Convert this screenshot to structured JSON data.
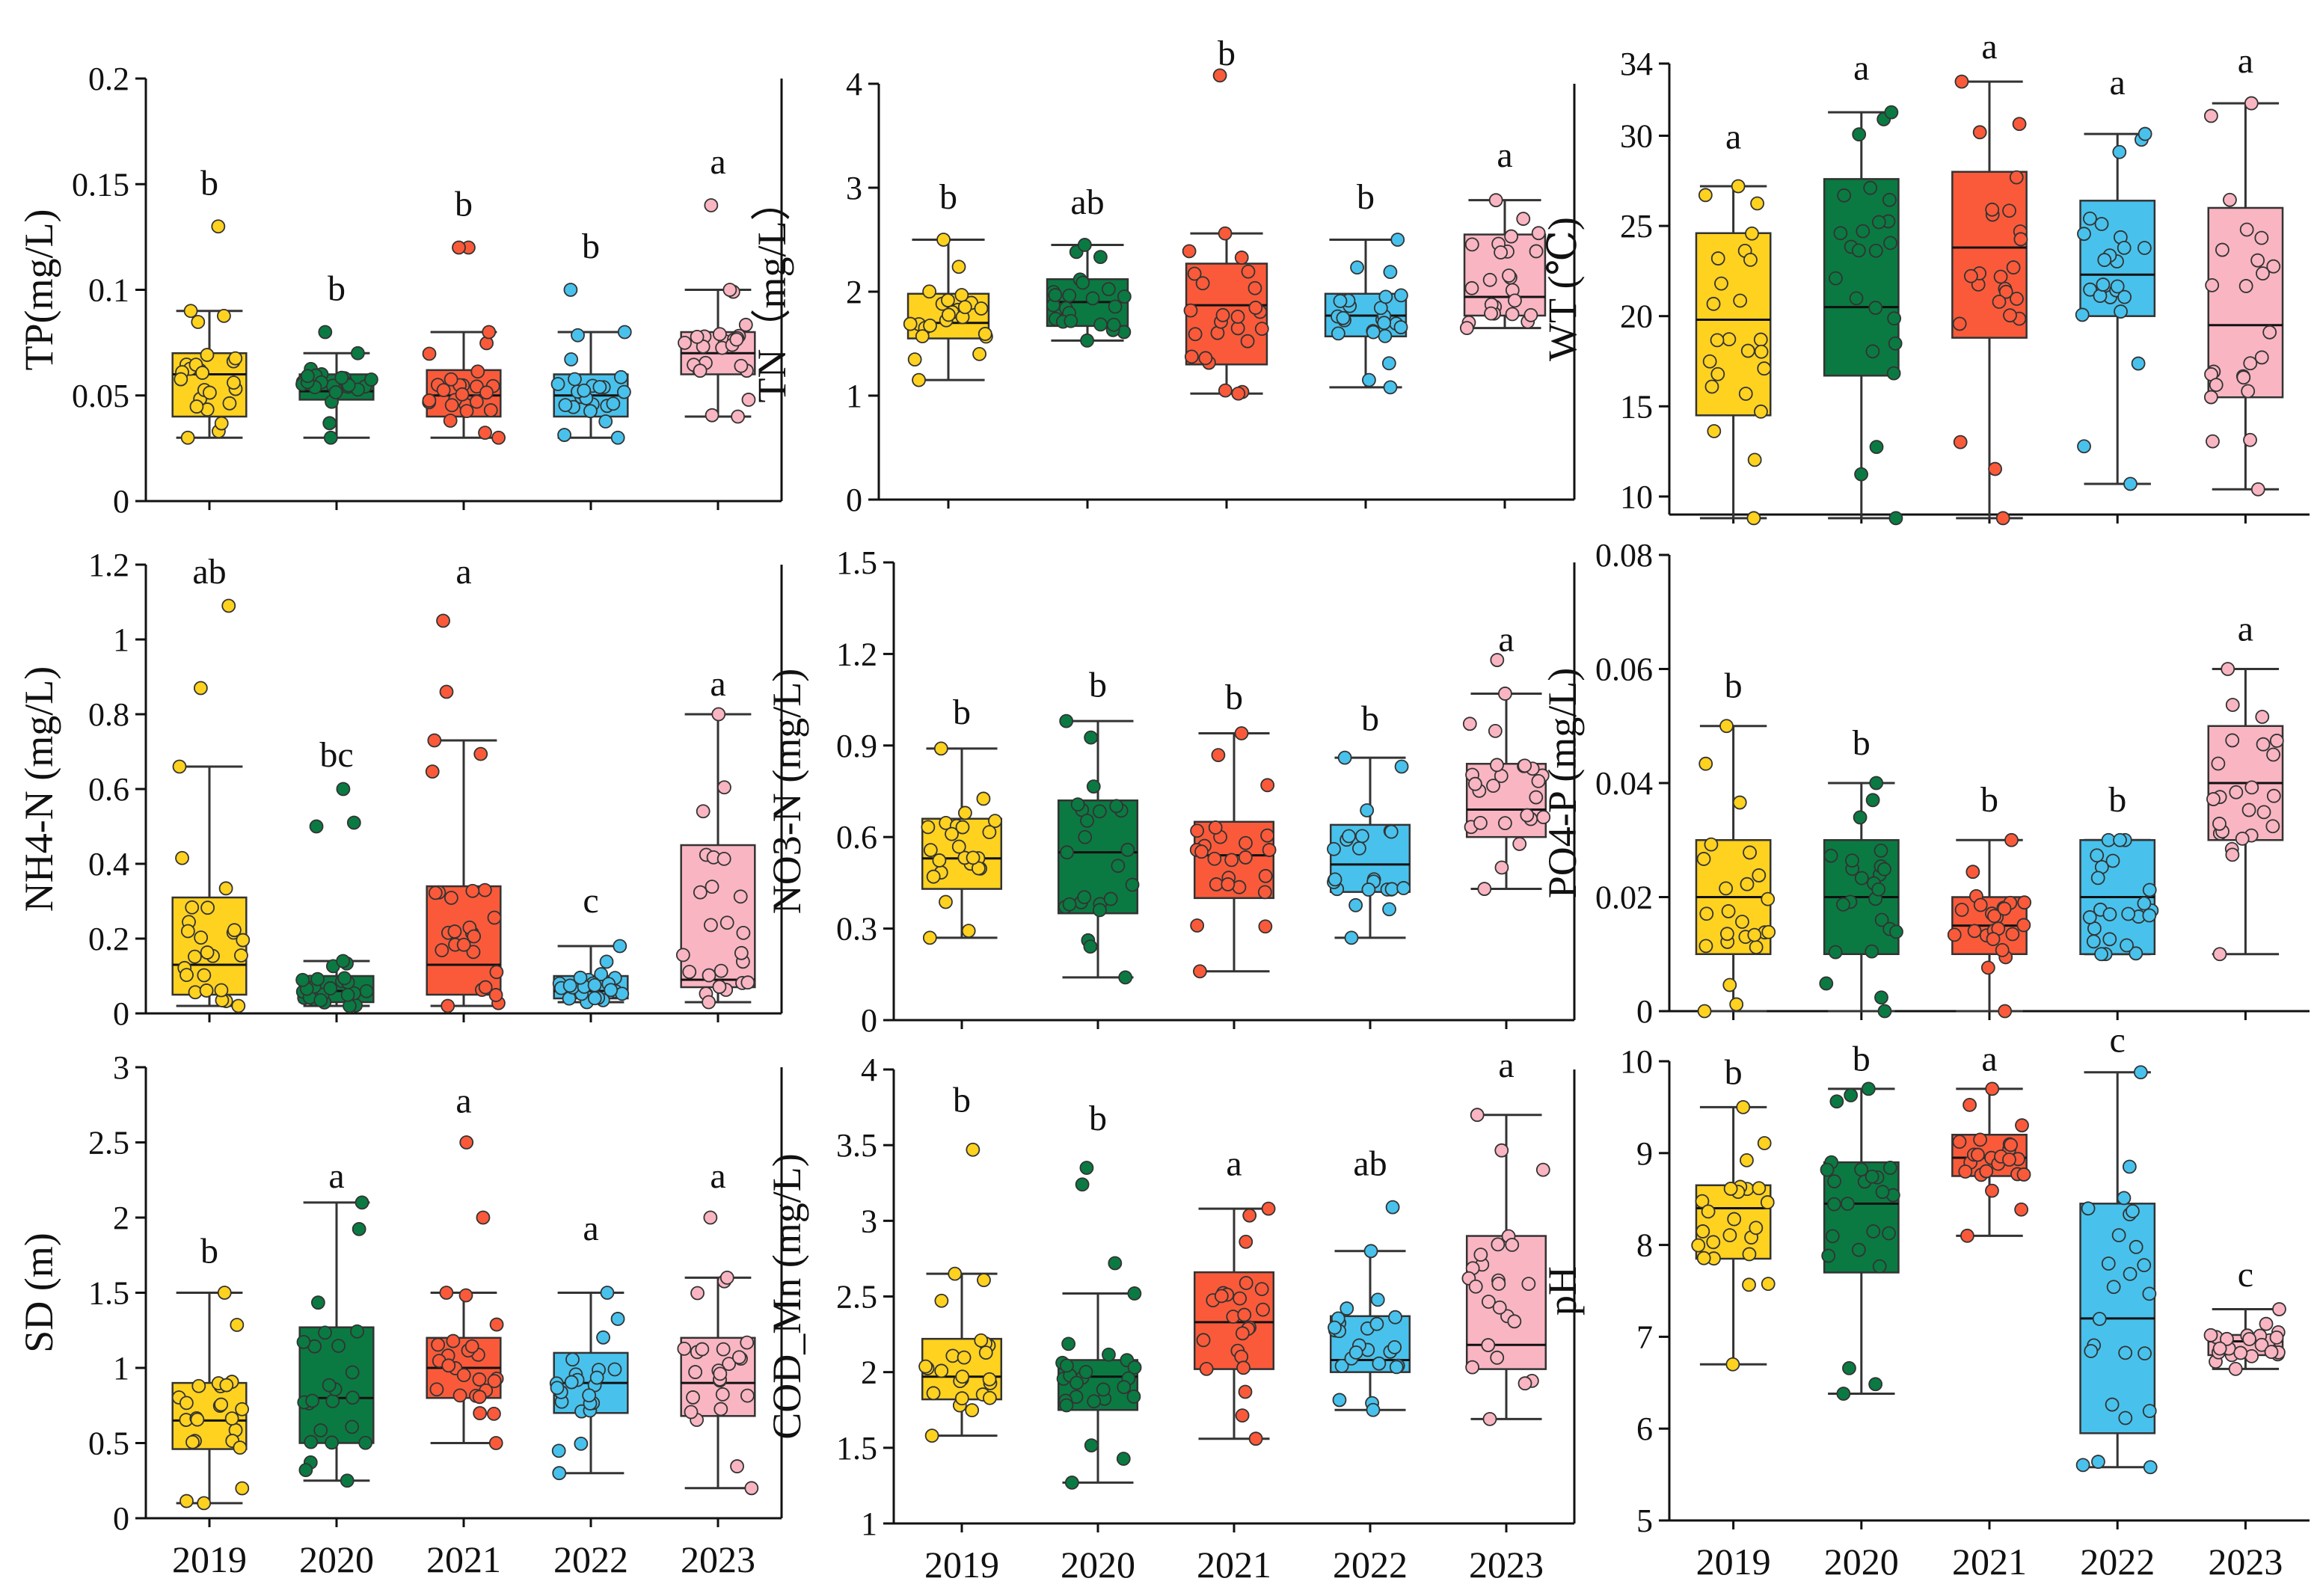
{
  "colors": {
    "2019": "#FFD21F",
    "2020": "#0A7A42",
    "2021": "#FA5A3A",
    "2022": "#48C2EC",
    "2023": "#F9B5C2",
    "axis": "#111111",
    "whisker": "#333333"
  },
  "chart_data": [
    {
      "type": "box",
      "id": "TP",
      "ylabel": "TP(mg/L)",
      "ylim": [
        0,
        0.2
      ],
      "yticks": [
        0,
        0.05,
        0.1,
        0.15,
        0.2
      ],
      "ytick_labels": [
        "0",
        "0.05",
        "0.1",
        "0.15",
        "0.2"
      ],
      "categories": [
        "2019",
        "2020",
        "2021",
        "2022",
        "2023"
      ],
      "show_xticks": false,
      "show_right_axis": true,
      "boxes": [
        {
          "min": 0.03,
          "q1": 0.04,
          "median": 0.06,
          "q3": 0.07,
          "max": 0.09,
          "letter": "b",
          "letter_y": 0.145,
          "outliers": [
            0.13
          ]
        },
        {
          "min": 0.03,
          "q1": 0.048,
          "median": 0.052,
          "q3": 0.06,
          "max": 0.07,
          "letter": "b",
          "letter_y": 0.095,
          "outliers": [
            0.08
          ]
        },
        {
          "min": 0.03,
          "q1": 0.04,
          "median": 0.05,
          "q3": 0.062,
          "max": 0.08,
          "letter": "b",
          "letter_y": 0.135,
          "outliers": [
            0.12,
            0.12
          ]
        },
        {
          "min": 0.03,
          "q1": 0.04,
          "median": 0.05,
          "q3": 0.06,
          "max": 0.08,
          "letter": "b",
          "letter_y": 0.115,
          "outliers": [
            0.1
          ]
        },
        {
          "min": 0.04,
          "q1": 0.06,
          "median": 0.07,
          "q3": 0.08,
          "max": 0.1,
          "letter": "a",
          "letter_y": 0.155,
          "outliers": [
            0.14
          ]
        }
      ]
    },
    {
      "type": "box",
      "id": "TN",
      "ylabel": "TN（mg/L）",
      "ylim": [
        0,
        4
      ],
      "yticks": [
        0,
        1,
        2,
        3,
        4
      ],
      "ytick_labels": [
        "0",
        "1",
        "2",
        "3",
        "4"
      ],
      "categories": [
        "2019",
        "2020",
        "2021",
        "2022",
        "2023"
      ],
      "show_xticks": false,
      "show_right_axis": true,
      "boxes": [
        {
          "min": 1.15,
          "q1": 1.55,
          "median": 1.7,
          "q3": 1.98,
          "max": 2.5,
          "letter": "b",
          "letter_y": 2.8,
          "outliers": []
        },
        {
          "min": 1.53,
          "q1": 1.67,
          "median": 1.9,
          "q3": 2.12,
          "max": 2.45,
          "letter": "ab",
          "letter_y": 2.75,
          "outliers": []
        },
        {
          "min": 1.02,
          "q1": 1.3,
          "median": 1.87,
          "q3": 2.27,
          "max": 2.56,
          "letter": "b",
          "letter_y": 4.45,
          "outliers": [
            4.08
          ]
        },
        {
          "min": 1.08,
          "q1": 1.57,
          "median": 1.77,
          "q3": 1.98,
          "max": 2.5,
          "letter": "b",
          "letter_y": 2.8,
          "outliers": []
        },
        {
          "min": 1.65,
          "q1": 1.77,
          "median": 1.95,
          "q3": 2.55,
          "max": 2.88,
          "letter": "a",
          "letter_y": 3.2,
          "outliers": []
        }
      ]
    },
    {
      "type": "box",
      "id": "WT",
      "ylabel": "WT (℃)",
      "ylim": [
        9,
        34
      ],
      "yticks": [
        10,
        15,
        20,
        25,
        30,
        34
      ],
      "ytick_labels": [
        "10",
        "15",
        "20",
        "25",
        "30",
        "34"
      ],
      "categories": [
        "2019",
        "2020",
        "2021",
        "2022",
        "2023"
      ],
      "show_xticks": false,
      "show_right_axis": false,
      "boxes": [
        {
          "min": 8.8,
          "q1": 14.5,
          "median": 19.8,
          "q3": 24.6,
          "max": 27.2,
          "letter": "a",
          "letter_y": 29.3,
          "outliers": []
        },
        {
          "min": 8.8,
          "q1": 16.7,
          "median": 20.5,
          "q3": 27.6,
          "max": 31.3,
          "letter": "a",
          "letter_y": 33.1,
          "outliers": []
        },
        {
          "min": 8.8,
          "q1": 18.8,
          "median": 23.8,
          "q3": 28.0,
          "max": 33.0,
          "letter": "a",
          "letter_y": 34.3,
          "outliers": []
        },
        {
          "min": 10.7,
          "q1": 20.0,
          "median": 22.3,
          "q3": 26.4,
          "max": 30.1,
          "letter": "a",
          "letter_y": 32.3,
          "outliers": []
        },
        {
          "min": 10.4,
          "q1": 15.5,
          "median": 19.5,
          "q3": 26.0,
          "max": 31.8,
          "letter": "a",
          "letter_y": 33.5,
          "outliers": []
        }
      ]
    },
    {
      "type": "box",
      "id": "NH4",
      "ylabel": "NH4-N (mg/L)",
      "ylim": [
        0,
        1.2
      ],
      "yticks": [
        0,
        0.2,
        0.4,
        0.6,
        0.8,
        1,
        1.2
      ],
      "ytick_labels": [
        "0",
        "0.2",
        "0.4",
        "0.6",
        "0.8",
        "1",
        "1.2"
      ],
      "categories": [
        "2019",
        "2020",
        "2021",
        "2022",
        "2023"
      ],
      "show_xticks": false,
      "show_right_axis": true,
      "boxes": [
        {
          "min": 0.02,
          "q1": 0.05,
          "median": 0.13,
          "q3": 0.31,
          "max": 0.66,
          "letter": "ab",
          "letter_y": 1.15,
          "outliers": [
            0.87,
            1.09
          ]
        },
        {
          "min": 0.02,
          "q1": 0.03,
          "median": 0.06,
          "q3": 0.1,
          "max": 0.14,
          "letter": "bc",
          "letter_y": 0.66,
          "outliers": [
            0.5,
            0.51,
            0.6
          ]
        },
        {
          "min": 0.02,
          "q1": 0.05,
          "median": 0.13,
          "q3": 0.34,
          "max": 0.73,
          "letter": "a",
          "letter_y": 1.15,
          "outliers": [
            0.86,
            1.05
          ]
        },
        {
          "min": 0.03,
          "q1": 0.04,
          "median": 0.06,
          "q3": 0.1,
          "max": 0.18,
          "letter": "c",
          "letter_y": 0.27,
          "outliers": []
        },
        {
          "min": 0.03,
          "q1": 0.07,
          "median": 0.09,
          "q3": 0.45,
          "max": 0.8,
          "letter": "a",
          "letter_y": 0.85,
          "outliers": []
        }
      ]
    },
    {
      "type": "box",
      "id": "NO3",
      "ylabel": "NO3-N (mg/L)",
      "ylim": [
        0,
        1.5
      ],
      "yticks": [
        0,
        0.3,
        0.6,
        0.9,
        1.2,
        1.5
      ],
      "ytick_labels": [
        "0",
        "0.3",
        "0.6",
        "0.9",
        "1.2",
        "1.5"
      ],
      "categories": [
        "2019",
        "2020",
        "2021",
        "2022",
        "2023"
      ],
      "show_xticks": false,
      "show_right_axis": true,
      "boxes": [
        {
          "min": 0.27,
          "q1": 0.43,
          "median": 0.53,
          "q3": 0.66,
          "max": 0.89,
          "letter": "b",
          "letter_y": 0.97,
          "outliers": []
        },
        {
          "min": 0.14,
          "q1": 0.35,
          "median": 0.55,
          "q3": 0.72,
          "max": 0.98,
          "letter": "b",
          "letter_y": 1.06,
          "outliers": []
        },
        {
          "min": 0.16,
          "q1": 0.4,
          "median": 0.54,
          "q3": 0.65,
          "max": 0.94,
          "letter": "b",
          "letter_y": 1.02,
          "outliers": []
        },
        {
          "min": 0.27,
          "q1": 0.42,
          "median": 0.51,
          "q3": 0.64,
          "max": 0.86,
          "letter": "b",
          "letter_y": 0.95,
          "outliers": []
        },
        {
          "min": 0.43,
          "q1": 0.6,
          "median": 0.69,
          "q3": 0.84,
          "max": 1.07,
          "letter": "a",
          "letter_y": 1.21,
          "outliers": [
            1.18
          ]
        }
      ]
    },
    {
      "type": "box",
      "id": "PO4",
      "ylabel": "PO4-P (mg/L)",
      "ylim": [
        0,
        0.08
      ],
      "yticks": [
        0,
        0.02,
        0.04,
        0.06,
        0.08
      ],
      "ytick_labels": [
        "0",
        "0.02",
        "0.04",
        "0.06",
        "0.08"
      ],
      "categories": [
        "2019",
        "2020",
        "2021",
        "2022",
        "2023"
      ],
      "show_xticks": false,
      "show_right_axis": false,
      "boxes": [
        {
          "min": 0.0,
          "q1": 0.01,
          "median": 0.02,
          "q3": 0.03,
          "max": 0.05,
          "letter": "b",
          "letter_y": 0.055,
          "outliers": []
        },
        {
          "min": 0.0,
          "q1": 0.01,
          "median": 0.02,
          "q3": 0.03,
          "max": 0.04,
          "letter": "b",
          "letter_y": 0.045,
          "outliers": []
        },
        {
          "min": 0.0,
          "q1": 0.01,
          "median": 0.015,
          "q3": 0.02,
          "max": 0.03,
          "letter": "b",
          "letter_y": 0.035,
          "outliers": []
        },
        {
          "min": 0.01,
          "q1": 0.01,
          "median": 0.02,
          "q3": 0.03,
          "max": 0.03,
          "letter": "b",
          "letter_y": 0.035,
          "outliers": []
        },
        {
          "min": 0.01,
          "q1": 0.03,
          "median": 0.04,
          "q3": 0.05,
          "max": 0.06,
          "letter": "a",
          "letter_y": 0.065,
          "outliers": []
        }
      ]
    },
    {
      "type": "box",
      "id": "SD",
      "ylabel": "SD (m)",
      "ylim": [
        0,
        3
      ],
      "yticks": [
        0,
        0.5,
        1,
        1.5,
        2,
        2.5,
        3
      ],
      "ytick_labels": [
        "0",
        "0.5",
        "1",
        "1.5",
        "2",
        "2.5",
        "3"
      ],
      "categories": [
        "2019",
        "2020",
        "2021",
        "2022",
        "2023"
      ],
      "show_xticks": true,
      "show_right_axis": true,
      "boxes": [
        {
          "min": 0.1,
          "q1": 0.46,
          "median": 0.65,
          "q3": 0.9,
          "max": 1.5,
          "letter": "b",
          "letter_y": 1.7,
          "outliers": []
        },
        {
          "min": 0.25,
          "q1": 0.5,
          "median": 0.8,
          "q3": 1.27,
          "max": 2.1,
          "letter": "a",
          "letter_y": 2.2,
          "outliers": []
        },
        {
          "min": 0.5,
          "q1": 0.8,
          "median": 1.0,
          "q3": 1.2,
          "max": 1.5,
          "letter": "a",
          "letter_y": 2.7,
          "outliers": [
            2.0,
            2.5
          ]
        },
        {
          "min": 0.3,
          "q1": 0.7,
          "median": 0.9,
          "q3": 1.1,
          "max": 1.5,
          "letter": "a",
          "letter_y": 1.85,
          "outliers": []
        },
        {
          "min": 0.2,
          "q1": 0.68,
          "median": 0.9,
          "q3": 1.2,
          "max": 1.6,
          "letter": "a",
          "letter_y": 2.2,
          "outliers": [
            2.0
          ]
        }
      ]
    },
    {
      "type": "box",
      "id": "COD",
      "ylabel": "COD_Mn (mg/L)",
      "ylim": [
        1,
        4
      ],
      "yticks": [
        1,
        1.5,
        2,
        2.5,
        3,
        3.5,
        4
      ],
      "ytick_labels": [
        "1",
        "1.5",
        "2",
        "2.5",
        "3",
        "3.5",
        "4"
      ],
      "categories": [
        "2019",
        "2020",
        "2021",
        "2022",
        "2023"
      ],
      "show_xticks": true,
      "show_right_axis": true,
      "boxes": [
        {
          "min": 1.58,
          "q1": 1.82,
          "median": 1.97,
          "q3": 2.22,
          "max": 2.65,
          "letter": "b",
          "letter_y": 3.72,
          "outliers": [
            3.47
          ]
        },
        {
          "min": 1.27,
          "q1": 1.75,
          "median": 1.97,
          "q3": 2.08,
          "max": 2.52,
          "letter": "b",
          "letter_y": 3.6,
          "outliers": [
            2.72,
            3.24,
            3.35
          ]
        },
        {
          "min": 1.56,
          "q1": 2.02,
          "median": 2.33,
          "q3": 2.66,
          "max": 3.08,
          "letter": "a",
          "letter_y": 3.3,
          "outliers": []
        },
        {
          "min": 1.75,
          "q1": 2.0,
          "median": 2.08,
          "q3": 2.37,
          "max": 2.8,
          "letter": "ab",
          "letter_y": 3.3,
          "outliers": [
            3.09
          ]
        },
        {
          "min": 1.69,
          "q1": 2.02,
          "median": 2.18,
          "q3": 2.9,
          "max": 3.7,
          "letter": "a",
          "letter_y": 3.95,
          "outliers": []
        }
      ]
    },
    {
      "type": "box",
      "id": "pH",
      "ylabel": "pH",
      "ylim": [
        5,
        10
      ],
      "yticks": [
        5,
        6,
        7,
        8,
        9,
        10
      ],
      "ytick_labels": [
        "5",
        "6",
        "7",
        "8",
        "9",
        "10"
      ],
      "categories": [
        "2019",
        "2020",
        "2021",
        "2022",
        "2023"
      ],
      "show_xticks": true,
      "show_right_axis": false,
      "boxes": [
        {
          "min": 6.7,
          "q1": 7.85,
          "median": 8.4,
          "q3": 8.65,
          "max": 9.5,
          "letter": "b",
          "letter_y": 9.75,
          "outliers": []
        },
        {
          "min": 6.38,
          "q1": 7.7,
          "median": 8.45,
          "q3": 8.9,
          "max": 9.7,
          "letter": "b",
          "letter_y": 9.9,
          "outliers": []
        },
        {
          "min": 8.1,
          "q1": 8.75,
          "median": 8.95,
          "q3": 9.2,
          "max": 9.7,
          "letter": "a",
          "letter_y": 9.9,
          "outliers": []
        },
        {
          "min": 5.58,
          "q1": 5.95,
          "median": 7.2,
          "q3": 8.45,
          "max": 9.88,
          "letter": "c",
          "letter_y": 10.1,
          "outliers": []
        },
        {
          "min": 6.65,
          "q1": 6.8,
          "median": 6.95,
          "q3": 7.02,
          "max": 7.3,
          "letter": "c",
          "letter_y": 7.55,
          "outliers": []
        }
      ]
    }
  ]
}
